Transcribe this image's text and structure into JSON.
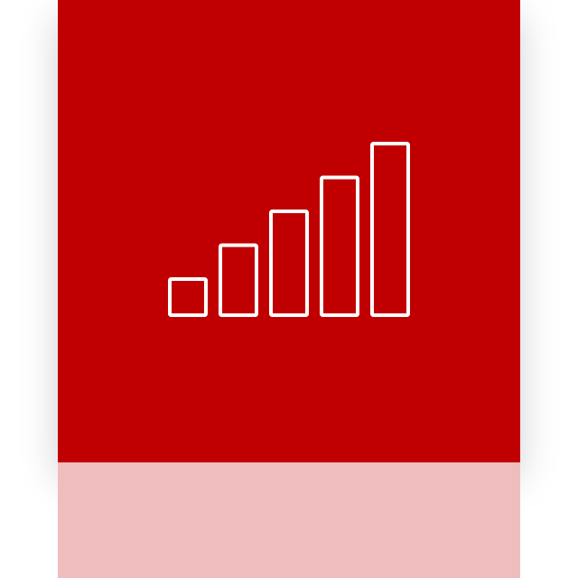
{
  "app_icon": {
    "icon": "signal-strength-icon",
    "bar_count": 5,
    "colors": {
      "tile": "#c00000",
      "reflection": "#efbdbd",
      "glyph": "#ffffff",
      "background": "#ffffff"
    }
  }
}
